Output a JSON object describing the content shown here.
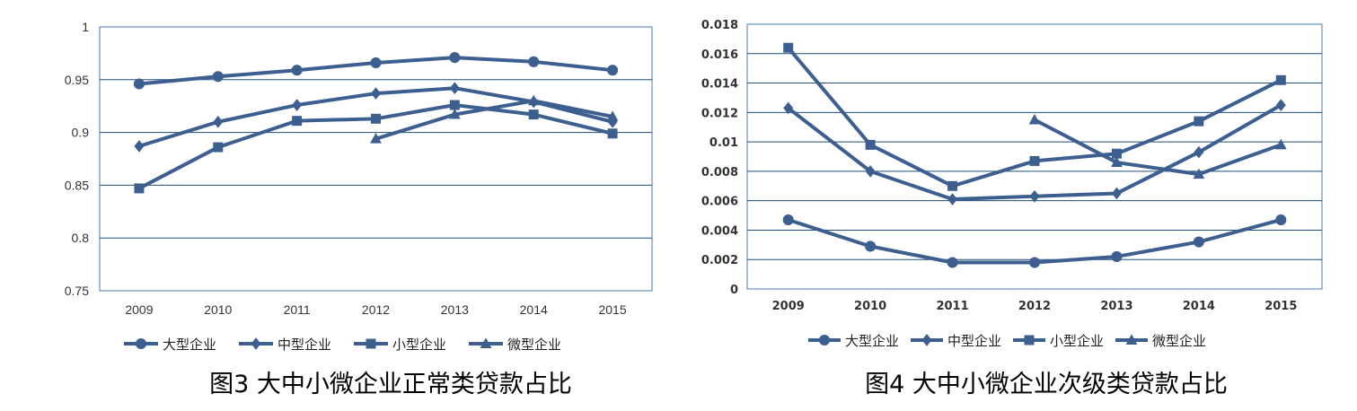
{
  "colors": {
    "series": "#3d5f8f",
    "plot_border": "#4a7ab5",
    "grid": "#1f4e79"
  },
  "chart_data": [
    {
      "type": "line",
      "caption": "图3 大中小微企业正常类贷款占比",
      "categories": [
        "2009",
        "2010",
        "2011",
        "2012",
        "2013",
        "2014",
        "2015"
      ],
      "ylim": [
        0.75,
        1
      ],
      "yticks": [
        "0.75",
        "0.8",
        "0.85",
        "0.9",
        "0.95",
        "1"
      ],
      "grid": true,
      "legend_position": "bottom",
      "series": [
        {
          "name": "大型企业",
          "marker": "circle",
          "values": [
            0.946,
            0.953,
            0.959,
            0.966,
            0.971,
            0.967,
            0.959
          ]
        },
        {
          "name": "中型企业",
          "marker": "diamond",
          "values": [
            0.887,
            0.91,
            0.926,
            0.937,
            0.942,
            0.929,
            0.91
          ]
        },
        {
          "name": "小型企业",
          "marker": "square",
          "values": [
            0.847,
            0.886,
            0.911,
            0.913,
            0.926,
            0.917,
            0.899
          ]
        },
        {
          "name": "微型企业",
          "marker": "triangle",
          "values": [
            null,
            null,
            null,
            0.894,
            0.917,
            0.93,
            0.915
          ]
        }
      ]
    },
    {
      "type": "line",
      "caption": "图4 大中小微企业次级类贷款占比",
      "categories": [
        "2009",
        "2010",
        "2011",
        "2012",
        "2013",
        "2014",
        "2015"
      ],
      "ylim": [
        0,
        0.018
      ],
      "yticks": [
        "0",
        "0.002",
        "0.004",
        "0.006",
        "0.008",
        "0.01",
        "0.012",
        "0.014",
        "0.016",
        "0.018"
      ],
      "grid": true,
      "legend_position": "bottom",
      "series": [
        {
          "name": "大型企业",
          "marker": "circle",
          "values": [
            0.0047,
            0.0029,
            0.0018,
            0.0018,
            0.0022,
            0.0032,
            0.0047
          ]
        },
        {
          "name": "中型企业",
          "marker": "diamond",
          "values": [
            0.0123,
            0.008,
            0.0061,
            0.0063,
            0.0065,
            0.0093,
            0.0125
          ]
        },
        {
          "name": "小型企业",
          "marker": "square",
          "values": [
            0.0164,
            0.0098,
            0.007,
            0.0087,
            0.0092,
            0.0114,
            0.0142
          ]
        },
        {
          "name": "微型企业",
          "marker": "triangle",
          "values": [
            null,
            null,
            null,
            0.0115,
            0.0086,
            0.0078,
            0.0098
          ]
        }
      ]
    }
  ]
}
